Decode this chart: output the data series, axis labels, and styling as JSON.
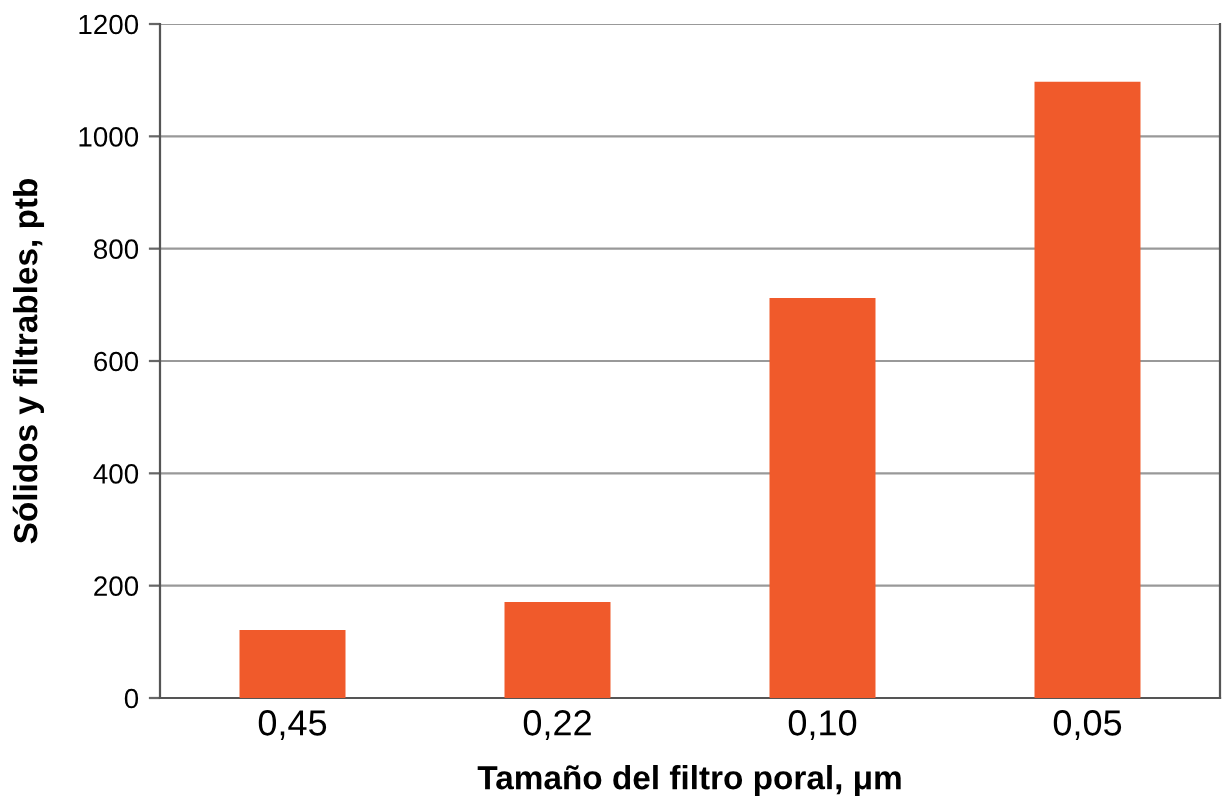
{
  "chart_data": {
    "type": "bar",
    "xlabel": "Tamaño del filtro poral, μm",
    "ylabel": "Sólidos y filtrables, ptb",
    "categories": [
      "0,45",
      "0,22",
      "0,10",
      "0,05"
    ],
    "values": [
      121,
      171,
      712,
      1097
    ],
    "color": "#f05a2b",
    "ylim": [
      0,
      1200
    ],
    "yticks": [
      0,
      200,
      400,
      600,
      800,
      1000,
      1200
    ],
    "grid": "y"
  }
}
